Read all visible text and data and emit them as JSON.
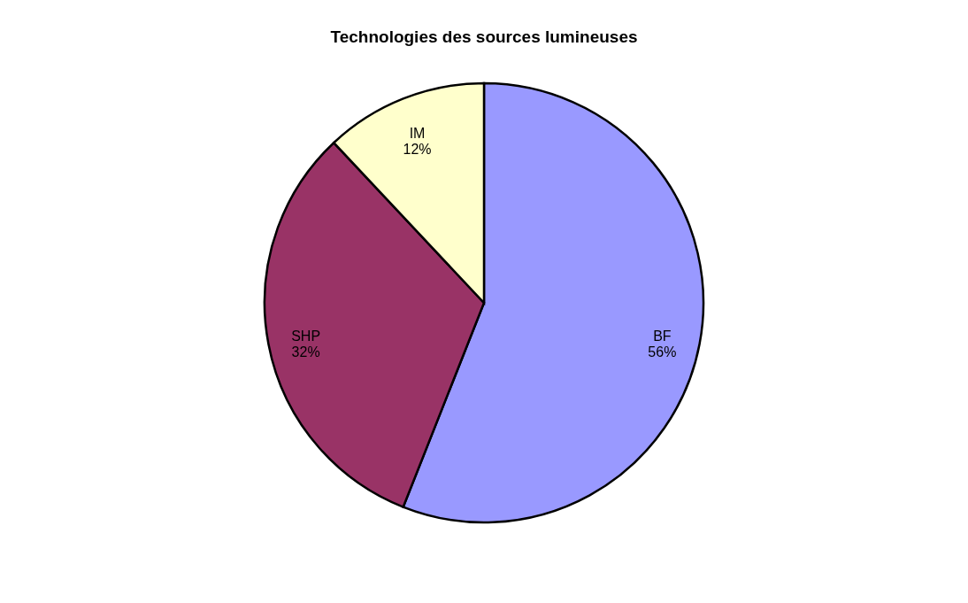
{
  "chart_data": {
    "type": "pie",
    "title": "Technologies des sources lumineuses",
    "categories": [
      "BF",
      "SHP",
      "IM"
    ],
    "values": [
      56,
      32,
      12
    ],
    "colors": [
      "#9999ff",
      "#993366",
      "#ffffcc"
    ],
    "value_labels": [
      "56%",
      "32%",
      "12%"
    ],
    "legend": false
  }
}
